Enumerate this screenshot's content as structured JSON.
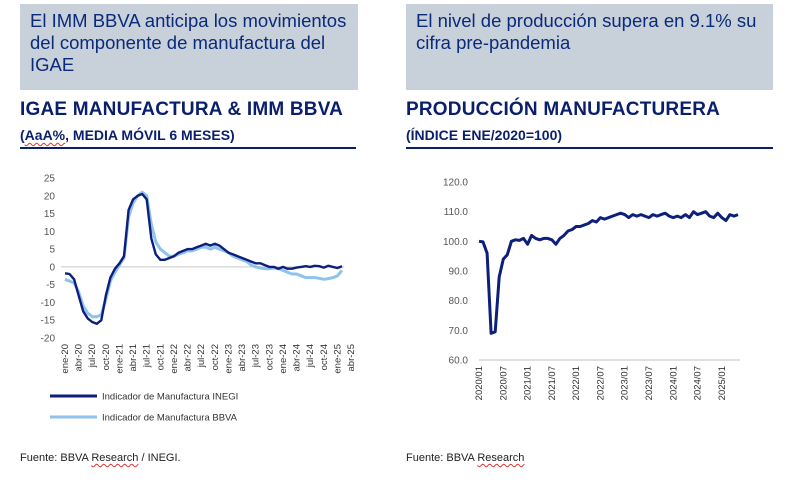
{
  "left_panel": {
    "banner": "El IMM BBVA anticipa los movimientos del componente de manufactura del IGAE",
    "title": "IGAE MANUFACTURA & IMM BBVA",
    "subtitle_prefix": "(",
    "subtitle_squiggle": "AaA%",
    "subtitle_rest": ", MEDIA MÓVIL 6 MESES)",
    "source_prefix": "Fuente: BBVA ",
    "source_squiggle": "Research",
    "source_rest": " / INEGI."
  },
  "right_panel": {
    "banner": "El nivel de producción supera en 9.1% su cifra pre-pandemia",
    "title": "PRODUCCIÓN MANUFACTURERA",
    "subtitle": "(ÍNDICE ENE/2020=100)",
    "source_prefix": "Fuente: BBVA ",
    "source_squiggle": "Research"
  },
  "colors": {
    "navy": "#0d1f7a",
    "light_blue": "#8ec3ee",
    "banner_bg": "#c8d0da",
    "title": "#0a1f6b"
  },
  "chart_data": [
    {
      "type": "line",
      "title": "IGAE MANUFACTURA & IMM BBVA",
      "ylim": [
        -20,
        25
      ],
      "yticks": [
        25,
        20,
        15,
        10,
        5,
        0,
        -5,
        -10,
        -15,
        -20
      ],
      "x_start": "ene-20",
      "x_step_months": 1,
      "x_tick_labels": [
        "ene-20",
        "abr-20",
        "jul-20",
        "oct-20",
        "ene-21",
        "abr-21",
        "jul-21",
        "oct-21",
        "ene-22",
        "abr-22",
        "jul-22",
        "oct-22",
        "ene-23",
        "abr-23",
        "jul-23",
        "oct-23",
        "ene-24",
        "abr-24",
        "jul-24",
        "oct-24",
        "ene-25",
        "abr-25"
      ],
      "legend_position": "bottom-left",
      "series": [
        {
          "name": "Indicador de Manufactura INEGI",
          "color": "#0d1f7a",
          "values": [
            -1.8,
            -2.0,
            -3.5,
            -8.0,
            -12.5,
            -14.5,
            -15.5,
            -16.0,
            -15.0,
            -8.0,
            -3.0,
            -0.5,
            1.0,
            3.0,
            16.0,
            19.0,
            20.0,
            20.5,
            19.0,
            8.0,
            3.5,
            2.0,
            2.0,
            2.5,
            3.0,
            4.0,
            4.5,
            5.0,
            5.0,
            5.5,
            6.0,
            6.5,
            6.0,
            6.5,
            6.0,
            5.0,
            4.0,
            3.5,
            3.0,
            2.5,
            2.0,
            1.5,
            1.0,
            1.0,
            0.5,
            0.0,
            0.0,
            -0.5,
            0.0,
            -0.5,
            -0.5,
            -0.2,
            0.0,
            0.2,
            0.0,
            0.3,
            0.2,
            -0.2,
            0.3,
            0.0,
            -0.3,
            0.2
          ]
        },
        {
          "name": "Indicador de Manufactura BBVA",
          "color": "#8ec3ee",
          "values": [
            -3.5,
            -4.0,
            -4.5,
            -7.0,
            -11.0,
            -13.0,
            -14.0,
            -14.0,
            -13.5,
            -9.0,
            -4.0,
            -1.5,
            0.5,
            2.5,
            14.0,
            18.0,
            20.0,
            21.0,
            20.0,
            12.0,
            7.0,
            5.0,
            4.0,
            3.0,
            3.0,
            3.5,
            4.0,
            4.5,
            4.5,
            5.0,
            5.5,
            5.5,
            5.0,
            5.5,
            5.0,
            4.5,
            4.0,
            3.0,
            2.5,
            2.0,
            1.5,
            0.5,
            0.0,
            -0.3,
            -0.5,
            -0.5,
            -0.3,
            -0.5,
            -1.0,
            -1.5,
            -2.0,
            -2.0,
            -2.5,
            -3.0,
            -3.0,
            -3.0,
            -3.2,
            -3.5,
            -3.3,
            -3.0,
            -2.5,
            -1.0
          ]
        }
      ]
    },
    {
      "type": "line",
      "title": "PRODUCCIÓN MANUFACTURERA",
      "ylim": [
        60,
        120
      ],
      "yticks": [
        "120.0",
        "110.0",
        "100.0",
        "90.0",
        "80.0",
        "70.0",
        "60.0"
      ],
      "x_start": "2020/01",
      "x_step_months": 1,
      "x_tick_labels": [
        "2020/01",
        "2020/07",
        "2021/01",
        "2021/07",
        "2022/01",
        "2022/07",
        "2023/01",
        "2023/07",
        "2024/01",
        "2024/07",
        "2025/01"
      ],
      "series": [
        {
          "name": "Producción manufacturera",
          "color": "#0d1f7a",
          "values": [
            100.0,
            99.8,
            96.0,
            69.0,
            69.5,
            88.0,
            94.0,
            95.5,
            100.0,
            100.5,
            100.3,
            101.0,
            99.0,
            102.0,
            101.0,
            100.5,
            101.0,
            101.0,
            100.5,
            99.0,
            101.0,
            102.0,
            103.5,
            104.0,
            105.0,
            105.0,
            105.5,
            106.0,
            107.0,
            106.5,
            108.0,
            107.5,
            108.0,
            108.5,
            109.0,
            109.5,
            109.0,
            108.0,
            109.0,
            108.5,
            109.0,
            108.5,
            108.0,
            109.0,
            108.5,
            109.0,
            109.5,
            108.5,
            108.0,
            108.5,
            108.0,
            109.0,
            108.0,
            110.0,
            109.0,
            109.5,
            110.0,
            108.5,
            108.0,
            109.5,
            108.0,
            107.0,
            109.0,
            108.5,
            109.0
          ]
        }
      ]
    }
  ]
}
